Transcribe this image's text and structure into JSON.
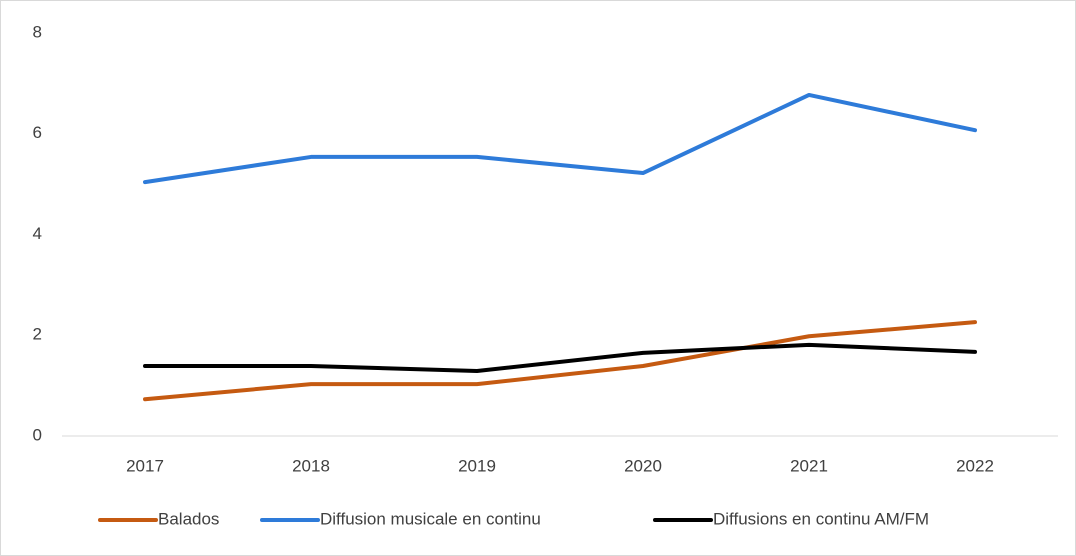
{
  "chart_data": {
    "type": "line",
    "categories": [
      "2017",
      "2018",
      "2019",
      "2020",
      "2021",
      "2022"
    ],
    "series": [
      {
        "name": "Balados",
        "color": "#c55a11",
        "values": [
          0.73,
          1.03,
          1.03,
          1.39,
          1.98,
          2.26
        ]
      },
      {
        "name": "Diffusion musicale en continu",
        "color": "#2e7bd9",
        "values": [
          5.04,
          5.54,
          5.54,
          5.22,
          6.77,
          6.07
        ]
      },
      {
        "name": "Diffusions en continu AM/FM",
        "color": "#000000",
        "values": [
          1.39,
          1.39,
          1.29,
          1.65,
          1.81,
          1.67
        ]
      }
    ],
    "ylim": [
      0,
      8
    ],
    "yticks": [
      0,
      2,
      4,
      6,
      8
    ],
    "grid": false,
    "legend": "bottom"
  }
}
